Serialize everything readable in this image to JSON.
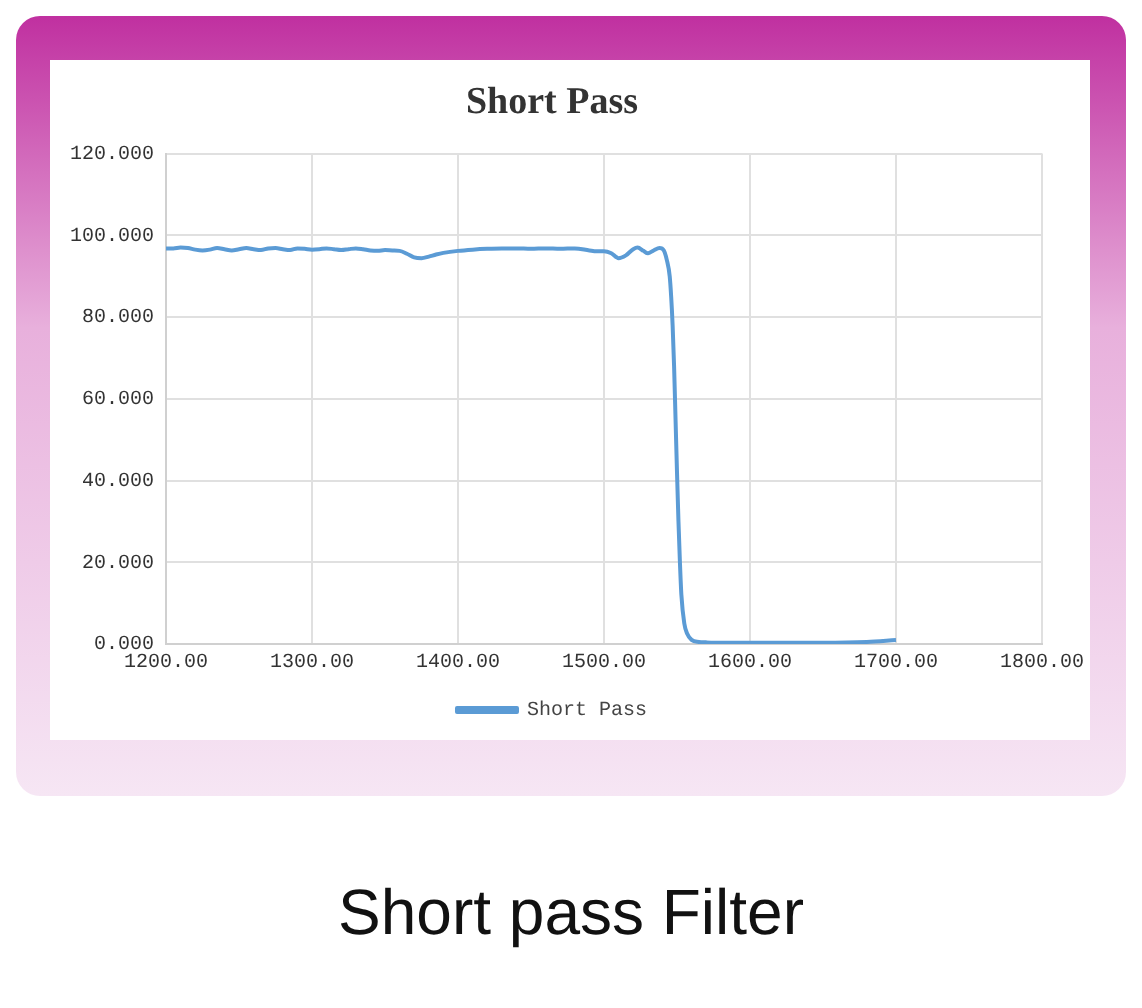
{
  "chart_data": {
    "type": "line",
    "title": "Short Pass",
    "annotations": [
      "Short pass Filter"
    ],
    "series": [
      {
        "name": "Short Pass",
        "color": "#5b9bd5",
        "x": [
          1200,
          1205,
          1210,
          1215,
          1220,
          1225,
          1230,
          1235,
          1240,
          1245,
          1250,
          1255,
          1260,
          1265,
          1270,
          1275,
          1280,
          1285,
          1290,
          1295,
          1300,
          1305,
          1310,
          1315,
          1320,
          1325,
          1330,
          1335,
          1340,
          1345,
          1350,
          1355,
          1360,
          1365,
          1370,
          1375,
          1380,
          1385,
          1390,
          1400,
          1410,
          1420,
          1430,
          1440,
          1450,
          1460,
          1470,
          1480,
          1490,
          1495,
          1500,
          1505,
          1510,
          1515,
          1520,
          1523,
          1527,
          1530,
          1534,
          1538,
          1541,
          1543,
          1545,
          1546,
          1547,
          1548,
          1549,
          1550,
          1551,
          1552,
          1553,
          1555,
          1557,
          1560,
          1565,
          1570,
          1580,
          1600,
          1620,
          1650,
          1680,
          1700
        ],
        "values": [
          96.8,
          96.8,
          97,
          96.9,
          96.5,
          96.3,
          96.5,
          96.9,
          96.6,
          96.3,
          96.6,
          96.9,
          96.6,
          96.4,
          96.8,
          96.9,
          96.6,
          96.4,
          96.8,
          96.7,
          96.5,
          96.6,
          96.8,
          96.6,
          96.4,
          96.6,
          96.8,
          96.6,
          96.3,
          96.2,
          96.4,
          96.3,
          96.2,
          95.5,
          94.6,
          94.4,
          94.8,
          95.3,
          95.7,
          96.2,
          96.5,
          96.7,
          96.8,
          96.8,
          96.7,
          96.8,
          96.7,
          96.8,
          96.3,
          96.1,
          96.1,
          95.6,
          94.4,
          95.1,
          96.6,
          97,
          96.2,
          95.6,
          96.3,
          96.9,
          96.3,
          94,
          90,
          85,
          78,
          68,
          55,
          42,
          30,
          20,
          12,
          5,
          2.5,
          1,
          0.5,
          0.4,
          0.3,
          0.3,
          0.3,
          0.3,
          0.5,
          1
        ]
      }
    ],
    "xlim": [
      1200,
      1800
    ],
    "xticks": [
      {
        "value": 1200,
        "label": "1200.00"
      },
      {
        "value": 1300,
        "label": "1300.00"
      },
      {
        "value": 1400,
        "label": "1400.00"
      },
      {
        "value": 1500,
        "label": "1500.00"
      },
      {
        "value": 1600,
        "label": "1600.00"
      },
      {
        "value": 1700,
        "label": "1700.00"
      },
      {
        "value": 1800,
        "label": "1800.00"
      }
    ],
    "ylim": [
      0,
      120
    ],
    "yticks": [
      {
        "value": 0,
        "label": "0.000"
      },
      {
        "value": 20,
        "label": "20.000"
      },
      {
        "value": 40,
        "label": "40.000"
      },
      {
        "value": 60,
        "label": "60.000"
      },
      {
        "value": 80,
        "label": "80.000"
      },
      {
        "value": 100,
        "label": "100.000"
      },
      {
        "value": 120,
        "label": "120.000"
      }
    ],
    "grid": true,
    "legend": "bottom",
    "marker": "none",
    "line_style": "solid"
  }
}
